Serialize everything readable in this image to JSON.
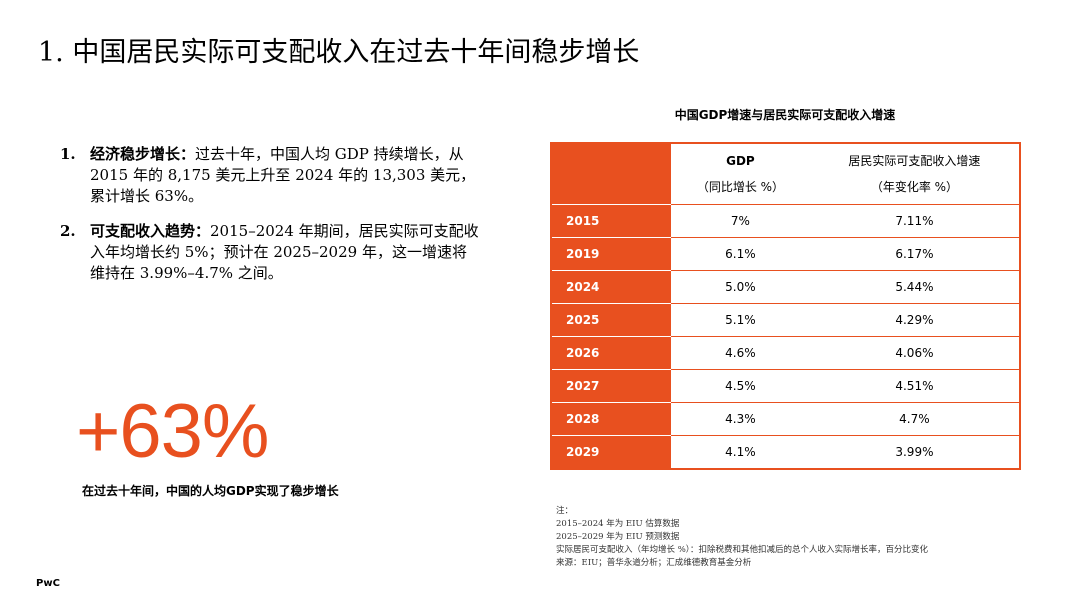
{
  "title": "1. 中国居民实际可支配收入在过去十年间稳步增长",
  "points": [
    {
      "num": "1.",
      "bold": "经济稳步增长：",
      "text": "过去十年，中国人均 GDP 持续增长，从 2015 年的 8,175 美元上升至 2024 年的 13,303 美元，累计增长 63%。"
    },
    {
      "num": "2.",
      "bold": "可支配收入趋势：",
      "text": "2015–2024 年期间，居民实际可支配收入年均增长约 5%；预计在 2025–2029 年，这一增速将维持在 3.99%–4.7% 之间。"
    }
  ],
  "highlight": {
    "value": "+63%",
    "caption": "在过去十年间，中国的人均GDP实现了稳步增长",
    "color": "#e8501f"
  },
  "table": {
    "caption": "中国GDP增速与居民实际可支配收入增速",
    "headers": [
      {
        "main": "GDP",
        "sub": "（同比增长 %）"
      },
      {
        "main": "居民实际可支配收入增速",
        "sub": "（年变化率 %）"
      }
    ],
    "rows": [
      {
        "year": "2015",
        "gdp": "7%",
        "income": "7.11%"
      },
      {
        "year": "2019",
        "gdp": "6.1%",
        "income": "6.17%"
      },
      {
        "year": "2024",
        "gdp": "5.0%",
        "income": "5.44%"
      },
      {
        "year": "2025",
        "gdp": "5.1%",
        "income": "4.29%"
      },
      {
        "year": "2026",
        "gdp": "4.6%",
        "income": "4.06%"
      },
      {
        "year": "2027",
        "gdp": "4.5%",
        "income": "4.51%"
      },
      {
        "year": "2028",
        "gdp": "4.3%",
        "income": "4.7%"
      },
      {
        "year": "2029",
        "gdp": "4.1%",
        "income": "3.99%"
      }
    ]
  },
  "notes": [
    "注：",
    "2015–2024 年为 EIU 估算数据",
    "2025–2029 年为 EIU 预测数据",
    "实际居民可支配收入（年均增长 %）：扣除税费和其他扣减后的总个人收入实际增长率，百分比变化",
    "来源：EIU；普华永道分析；汇成维德教育基金分析"
  ],
  "logo": "PwC"
}
